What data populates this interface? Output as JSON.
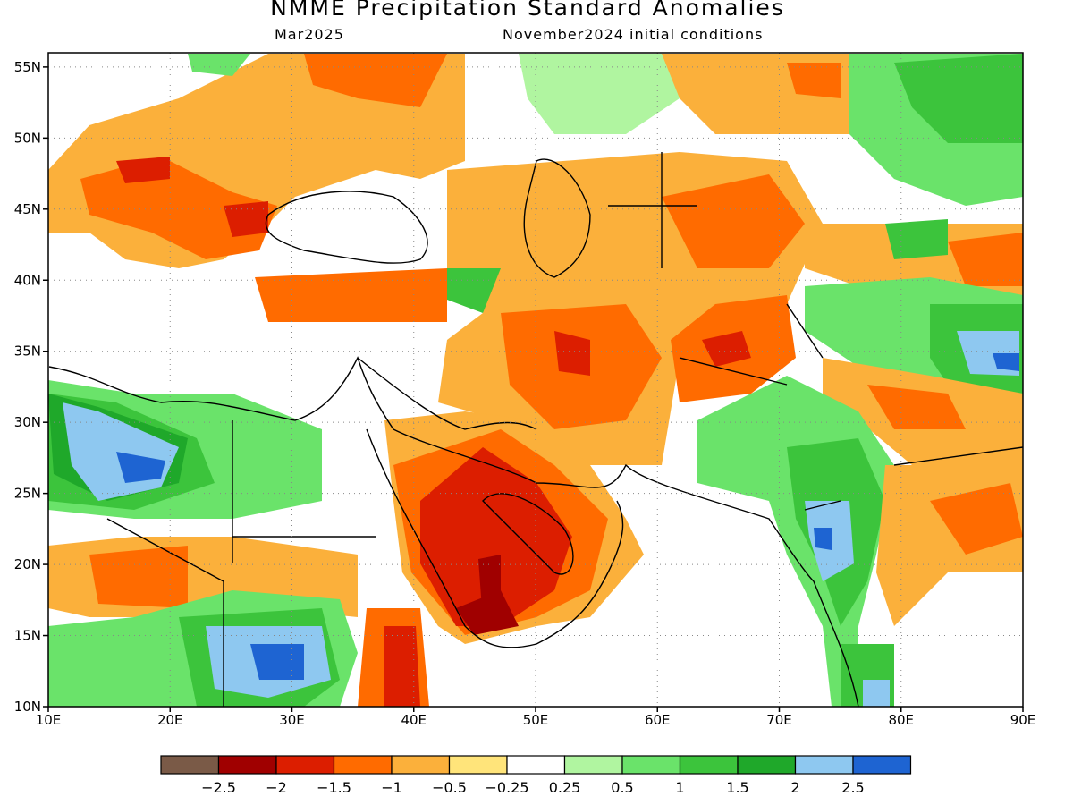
{
  "title": "NMME Precipitation Standard Anomalies",
  "valid_month": "Mar2025",
  "init_conditions": "November2024 initial conditions",
  "map": {
    "lon_range": [
      10,
      90
    ],
    "lat_range": [
      10,
      56
    ],
    "lon_ticks": [
      "10E",
      "20E",
      "30E",
      "40E",
      "50E",
      "60E",
      "70E",
      "80E",
      "90E"
    ],
    "lat_ticks": [
      "10N",
      "15N",
      "20N",
      "25N",
      "30N",
      "35N",
      "40N",
      "45N",
      "50N",
      "55N"
    ],
    "lon_tick_values": [
      10,
      20,
      30,
      40,
      50,
      60,
      70,
      80,
      90
    ],
    "lat_tick_values": [
      10,
      15,
      20,
      25,
      30,
      35,
      40,
      45,
      50,
      55
    ],
    "gridlines": "dotted"
  },
  "colorbar": {
    "colors": [
      "#7a5a47",
      "#a00000",
      "#dc1e00",
      "#ff6b00",
      "#fbb03b",
      "#ffe47a",
      "#ffffff",
      "#b0f5a0",
      "#6ae36a",
      "#3cc43c",
      "#1fa82a",
      "#8ec8f0",
      "#1e64d2"
    ],
    "labels": [
      "−2.5",
      "−2",
      "−1.5",
      "−1",
      "−0.5",
      "−0.25",
      "0.25",
      "0.5",
      "1",
      "1.5",
      "2",
      "2.5"
    ]
  },
  "anomaly_fields": [
    {
      "level": -2.5,
      "color": "#a00000",
      "region": "southern Arabian Peninsula core"
    },
    {
      "level": -1.5,
      "color": "#dc1e00",
      "region": "central and southern Saudi Arabia, Yemen, Oman"
    },
    {
      "level": -1,
      "color": "#ff6b00",
      "region": "Ukraine, Balkans, Iran, Afghanistan, Turkey, Ethiopia"
    },
    {
      "level": 1.5,
      "color": "#1fa82a",
      "region": "Libya, Chad, Sudan, western India, northern India"
    },
    {
      "level": 2.5,
      "color": "#1e64d2",
      "region": "Libya, South Sudan, Gujarat, Tibet"
    }
  ]
}
